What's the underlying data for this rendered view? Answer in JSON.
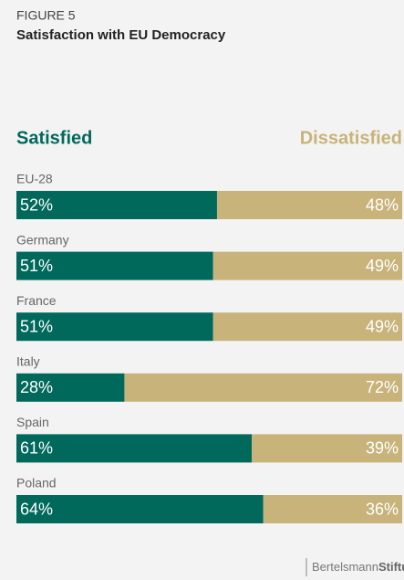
{
  "chart_data": {
    "type": "stacked-bar-horizontal",
    "title": "FIGURE 5",
    "subtitle": "Satisfaction with EU Democracy",
    "categories": [
      "EU-28",
      "Germany",
      "France",
      "Italy",
      "Spain",
      "Poland"
    ],
    "series": [
      {
        "name": "Satisfied",
        "color": "#00695c",
        "values": [
          52,
          51,
          51,
          28,
          61,
          64
        ],
        "value_labels": [
          "52%",
          "51%",
          "51%",
          "28%",
          "61%",
          "64%"
        ]
      },
      {
        "name": "Dissatisfied",
        "color": "#c8b37a",
        "values": [
          48,
          49,
          49,
          72,
          39,
          36
        ],
        "value_labels": [
          "48%",
          "49%",
          "49%",
          "72%",
          "39%",
          "36%"
        ]
      }
    ],
    "xlim": [
      0,
      100
    ],
    "logo": [
      "Bertelsmann",
      "Stiftung"
    ]
  }
}
